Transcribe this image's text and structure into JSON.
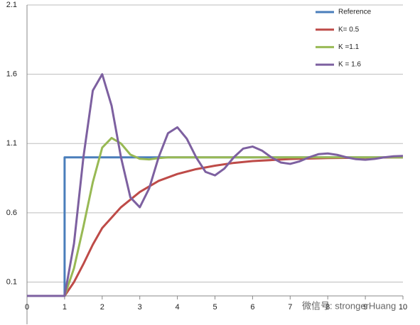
{
  "chart_data": {
    "type": "line",
    "xlim": [
      0,
      10
    ],
    "xticks": [
      0,
      1,
      2,
      3,
      4,
      5,
      6,
      7,
      8,
      9,
      10
    ],
    "ylim": [
      0,
      2.1
    ],
    "yticks": [
      0.1,
      0.6,
      1.1,
      1.6,
      2.1
    ],
    "grid": true,
    "legend": "top-right",
    "watermark": "微信号: strongerHuang",
    "series": [
      {
        "name": "Reference",
        "color": "#4a7ebb",
        "x": [
          0,
          1,
          1,
          10
        ],
        "values": [
          0,
          0,
          1,
          1
        ]
      },
      {
        "name": "K= 0.5",
        "color": "#be4b48",
        "x": [
          0,
          1,
          1.25,
          1.5,
          1.75,
          2,
          2.5,
          3,
          3.5,
          4,
          4.5,
          5,
          5.5,
          6,
          7,
          8,
          9,
          10
        ],
        "values": [
          0,
          0,
          0.1,
          0.23,
          0.37,
          0.49,
          0.64,
          0.75,
          0.83,
          0.88,
          0.915,
          0.94,
          0.96,
          0.973,
          0.988,
          0.995,
          0.998,
          1.0
        ]
      },
      {
        "name": "K =1.1",
        "color": "#98b954",
        "x": [
          0,
          1,
          1.25,
          1.5,
          1.75,
          2,
          2.25,
          2.5,
          2.75,
          3,
          3.25,
          3.5,
          3.75,
          4,
          5,
          6,
          7,
          8,
          9,
          10
        ],
        "values": [
          0,
          0,
          0.2,
          0.5,
          0.82,
          1.07,
          1.14,
          1.1,
          1.02,
          0.99,
          0.985,
          0.995,
          1.0,
          1.0,
          1.0,
          1.0,
          1.0,
          1.0,
          1.0,
          1.0
        ]
      },
      {
        "name": "K = 1.6",
        "color": "#7d60a0",
        "x": [
          0,
          1,
          1.25,
          1.5,
          1.75,
          2,
          2.25,
          2.5,
          2.75,
          3,
          3.25,
          3.5,
          3.75,
          4,
          4.25,
          4.5,
          4.75,
          5,
          5.25,
          5.5,
          5.75,
          6,
          6.25,
          6.5,
          6.75,
          7,
          7.25,
          7.5,
          7.75,
          8,
          8.25,
          8.5,
          8.75,
          9,
          9.25,
          9.5,
          9.75,
          10
        ],
        "values": [
          0,
          0,
          0.378,
          1,
          1.482,
          1.6,
          1.373,
          1,
          0.711,
          0.64,
          0.776,
          1,
          1.174,
          1.217,
          1.135,
          1,
          0.895,
          0.87,
          0.919,
          1,
          1.063,
          1.078,
          1.049,
          1,
          0.963,
          0.953,
          0.971,
          1,
          1.023,
          1.028,
          1.018,
          1,
          0.987,
          0.983,
          0.989,
          1,
          1.008,
          1.01
        ]
      }
    ]
  }
}
